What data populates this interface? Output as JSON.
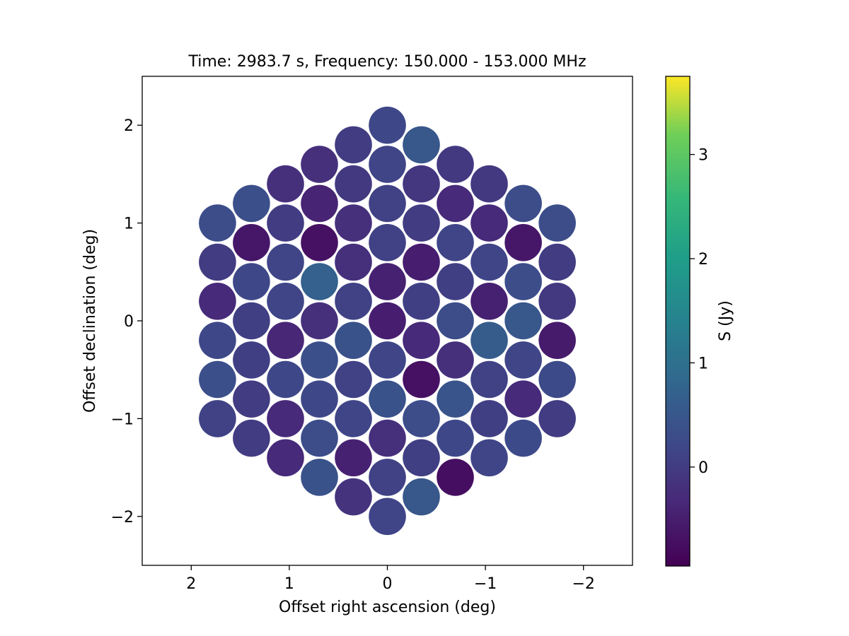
{
  "chart_data": {
    "type": "scatter",
    "title": "Time: 2983.7 s, Frequency: 150.000 - 153.000 MHz",
    "xlabel": "Offset right ascension (deg)",
    "ylabel": "Offset declination (deg)",
    "xlim": [
      2.5,
      -2.5
    ],
    "ylim": [
      -2.5,
      2.5
    ],
    "x_inverted": true,
    "xticks": [
      2,
      1,
      0,
      -1,
      -2
    ],
    "xtick_labels": [
      "2",
      "1",
      "0",
      "−1",
      "−2"
    ],
    "yticks": [
      2,
      1,
      0,
      -1,
      -2
    ],
    "ytick_labels": [
      "2",
      "1",
      "0",
      "−1",
      "−2"
    ],
    "grid": false,
    "colormap": "viridis",
    "colorbar": {
      "label": "S (Jy)",
      "range": [
        -0.95,
        3.75
      ],
      "ticks": [
        0,
        1,
        2,
        3
      ],
      "tick_labels": [
        "0",
        "1",
        "2",
        "3"
      ]
    },
    "beam_radius_deg": 0.19,
    "beams": [
      {
        "x": 0.0,
        "y": 2.0,
        "s": 0.2
      },
      {
        "x": 0.346,
        "y": 1.8,
        "s": 0.0
      },
      {
        "x": -0.346,
        "y": 1.8,
        "s": 0.5
      },
      {
        "x": 0.693,
        "y": 1.6,
        "s": -0.2
      },
      {
        "x": 0.0,
        "y": 1.6,
        "s": 0.15
      },
      {
        "x": -0.693,
        "y": 1.6,
        "s": -0.05
      },
      {
        "x": 1.039,
        "y": 1.4,
        "s": -0.2
      },
      {
        "x": 0.346,
        "y": 1.4,
        "s": -0.05
      },
      {
        "x": -0.346,
        "y": 1.4,
        "s": -0.1
      },
      {
        "x": -1.039,
        "y": 1.4,
        "s": -0.05
      },
      {
        "x": 1.386,
        "y": 1.2,
        "s": 0.35
      },
      {
        "x": 0.693,
        "y": 1.2,
        "s": -0.4
      },
      {
        "x": 0.0,
        "y": 1.2,
        "s": 0.1
      },
      {
        "x": -0.693,
        "y": 1.2,
        "s": -0.3
      },
      {
        "x": -1.386,
        "y": 1.2,
        "s": 0.3
      },
      {
        "x": 1.732,
        "y": 1.0,
        "s": 0.3
      },
      {
        "x": 1.039,
        "y": 1.0,
        "s": 0.0
      },
      {
        "x": 0.346,
        "y": 1.0,
        "s": -0.2
      },
      {
        "x": -0.346,
        "y": 1.0,
        "s": 0.0
      },
      {
        "x": -1.039,
        "y": 1.0,
        "s": -0.3
      },
      {
        "x": -1.732,
        "y": 1.0,
        "s": 0.3
      },
      {
        "x": 1.386,
        "y": 0.8,
        "s": -0.6
      },
      {
        "x": 0.693,
        "y": 0.8,
        "s": -0.7
      },
      {
        "x": 0.0,
        "y": 0.8,
        "s": 0.1
      },
      {
        "x": -0.693,
        "y": 0.8,
        "s": 0.15
      },
      {
        "x": -1.386,
        "y": 0.8,
        "s": -0.6
      },
      {
        "x": 1.732,
        "y": 0.6,
        "s": 0.0
      },
      {
        "x": 1.039,
        "y": 0.6,
        "s": 0.15
      },
      {
        "x": 0.346,
        "y": 0.6,
        "s": -0.2
      },
      {
        "x": -0.346,
        "y": 0.6,
        "s": -0.5
      },
      {
        "x": -1.039,
        "y": 0.6,
        "s": 0.15
      },
      {
        "x": -1.732,
        "y": 0.6,
        "s": 0.0
      },
      {
        "x": 1.386,
        "y": 0.4,
        "s": 0.2
      },
      {
        "x": 0.693,
        "y": 0.4,
        "s": 0.7
      },
      {
        "x": 0.0,
        "y": 0.4,
        "s": -0.45
      },
      {
        "x": -0.693,
        "y": 0.4,
        "s": 0.05
      },
      {
        "x": -1.386,
        "y": 0.4,
        "s": 0.3
      },
      {
        "x": 1.732,
        "y": 0.2,
        "s": -0.3
      },
      {
        "x": 1.039,
        "y": 0.2,
        "s": 0.15
      },
      {
        "x": 0.346,
        "y": 0.2,
        "s": 0.1
      },
      {
        "x": -0.346,
        "y": 0.2,
        "s": 0.05
      },
      {
        "x": -1.039,
        "y": 0.2,
        "s": -0.45
      },
      {
        "x": -1.732,
        "y": 0.2,
        "s": -0.05
      },
      {
        "x": 1.386,
        "y": 0.0,
        "s": 0.05
      },
      {
        "x": 0.693,
        "y": 0.0,
        "s": -0.2
      },
      {
        "x": 0.0,
        "y": 0.0,
        "s": -0.5
      },
      {
        "x": -0.693,
        "y": 0.0,
        "s": 0.3
      },
      {
        "x": -1.386,
        "y": 0.0,
        "s": 0.5
      },
      {
        "x": 1.732,
        "y": -0.2,
        "s": 0.2
      },
      {
        "x": 1.039,
        "y": -0.2,
        "s": -0.35
      },
      {
        "x": 0.346,
        "y": -0.2,
        "s": 0.4
      },
      {
        "x": -0.346,
        "y": -0.2,
        "s": -0.3
      },
      {
        "x": -1.039,
        "y": -0.2,
        "s": 0.6
      },
      {
        "x": -1.732,
        "y": -0.2,
        "s": -0.55
      },
      {
        "x": 1.386,
        "y": -0.4,
        "s": 0.05
      },
      {
        "x": 0.693,
        "y": -0.4,
        "s": 0.35
      },
      {
        "x": 0.0,
        "y": -0.4,
        "s": 0.15
      },
      {
        "x": -0.693,
        "y": -0.4,
        "s": -0.2
      },
      {
        "x": -1.386,
        "y": -0.4,
        "s": 0.15
      },
      {
        "x": 1.732,
        "y": -0.6,
        "s": 0.35
      },
      {
        "x": 1.039,
        "y": -0.6,
        "s": 0.2
      },
      {
        "x": 0.346,
        "y": -0.6,
        "s": 0.1
      },
      {
        "x": -0.346,
        "y": -0.6,
        "s": -0.7
      },
      {
        "x": -1.039,
        "y": -0.6,
        "s": 0.1
      },
      {
        "x": -1.732,
        "y": -0.6,
        "s": 0.25
      },
      {
        "x": 1.386,
        "y": -0.8,
        "s": 0.0
      },
      {
        "x": 0.693,
        "y": -0.8,
        "s": 0.2
      },
      {
        "x": 0.0,
        "y": -0.8,
        "s": 0.4
      },
      {
        "x": -0.693,
        "y": -0.8,
        "s": 0.45
      },
      {
        "x": -1.386,
        "y": -0.8,
        "s": -0.3
      },
      {
        "x": 1.732,
        "y": -1.0,
        "s": 0.1
      },
      {
        "x": 1.039,
        "y": -1.0,
        "s": -0.3
      },
      {
        "x": 0.346,
        "y": -1.0,
        "s": 0.15
      },
      {
        "x": -0.346,
        "y": -1.0,
        "s": 0.3
      },
      {
        "x": -1.039,
        "y": -1.0,
        "s": 0.05
      },
      {
        "x": -1.732,
        "y": -1.0,
        "s": 0.0
      },
      {
        "x": 1.386,
        "y": -1.2,
        "s": 0.0
      },
      {
        "x": 0.693,
        "y": -1.2,
        "s": 0.3
      },
      {
        "x": 0.0,
        "y": -1.2,
        "s": -0.2
      },
      {
        "x": -0.693,
        "y": -1.2,
        "s": 0.2
      },
      {
        "x": -1.386,
        "y": -1.2,
        "s": 0.25
      },
      {
        "x": 1.039,
        "y": -1.4,
        "s": -0.3
      },
      {
        "x": 0.346,
        "y": -1.4,
        "s": -0.45
      },
      {
        "x": -0.346,
        "y": -1.4,
        "s": 0.05
      },
      {
        "x": -1.039,
        "y": -1.4,
        "s": 0.15
      },
      {
        "x": 0.693,
        "y": -1.6,
        "s": 0.4
      },
      {
        "x": 0.0,
        "y": -1.6,
        "s": 0.1
      },
      {
        "x": -0.693,
        "y": -1.6,
        "s": -0.75
      },
      {
        "x": 0.346,
        "y": -1.8,
        "s": -0.15
      },
      {
        "x": -0.346,
        "y": -1.8,
        "s": 0.5
      },
      {
        "x": 0.0,
        "y": -2.0,
        "s": 0.15
      }
    ]
  }
}
